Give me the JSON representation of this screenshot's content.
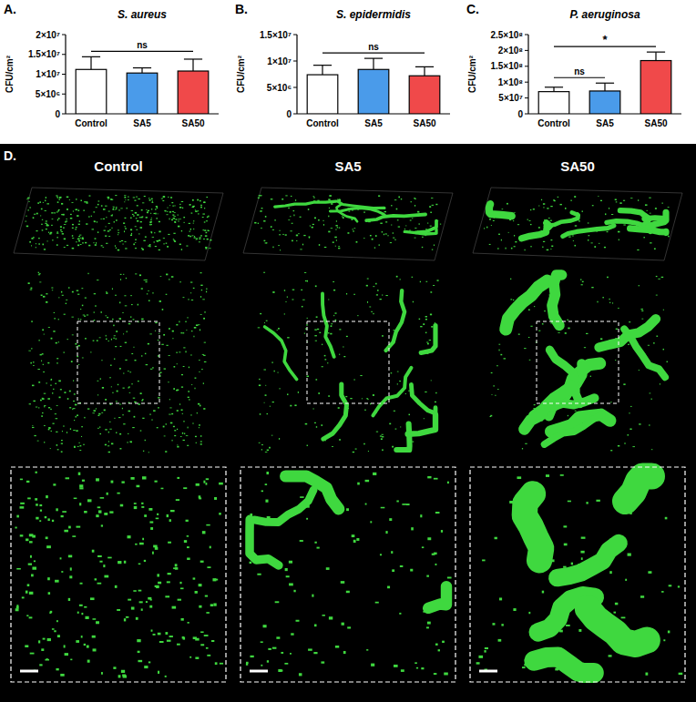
{
  "chart_data": [
    {
      "type": "bar",
      "panel": "A.",
      "title": "S. aureus",
      "y_label": "CFU/cm²",
      "categories": [
        "Control",
        "SA5",
        "SA50"
      ],
      "values": [
        11200000,
        10300000,
        10800000
      ],
      "errors": [
        3200000,
        1300000,
        3000000
      ],
      "colors": [
        "#ffffff",
        "#4a9bea",
        "#f0494a"
      ],
      "ylim": [
        0,
        20000000
      ],
      "yticks": [
        0,
        {
          "value": 5000000,
          "label": "5×10⁶"
        },
        {
          "value": 10000000,
          "label": "1×10⁷"
        },
        {
          "value": 15000000,
          "label": "1.5×10⁷"
        },
        {
          "value": 20000000,
          "label": "2×10⁷"
        }
      ],
      "annotations": [
        {
          "text": "ns",
          "from": 0,
          "to": 2
        }
      ]
    },
    {
      "type": "bar",
      "panel": "B.",
      "title": "S. epidermidis",
      "y_label": "CFU/cm²",
      "categories": [
        "Control",
        "SA5",
        "SA50"
      ],
      "values": [
        7400000,
        8400000,
        7200000
      ],
      "errors": [
        1800000,
        2100000,
        1700000
      ],
      "colors": [
        "#ffffff",
        "#4a9bea",
        "#f0494a"
      ],
      "ylim": [
        0,
        15000000
      ],
      "yticks": [
        0,
        {
          "value": 5000000,
          "label": "5×10⁶"
        },
        {
          "value": 10000000,
          "label": "1×10⁷"
        },
        {
          "value": 15000000,
          "label": "1.5×10⁷"
        }
      ],
      "annotations": [
        {
          "text": "ns",
          "from": 0,
          "to": 2
        }
      ]
    },
    {
      "type": "bar",
      "panel": "C.",
      "title": "P. aeruginosa",
      "y_label": "CFU/cm²",
      "categories": [
        "Control",
        "SA5",
        "SA50"
      ],
      "values": [
        70000000,
        72000000,
        168000000
      ],
      "errors": [
        14000000,
        25000000,
        27000000
      ],
      "colors": [
        "#ffffff",
        "#4a9bea",
        "#f0494a"
      ],
      "ylim": [
        0,
        250000000
      ],
      "yticks": [
        0,
        {
          "value": 50000000,
          "label": "5×10⁷"
        },
        {
          "value": 100000000,
          "label": "1×10⁸"
        },
        {
          "value": 150000000,
          "label": "1.5×10⁸"
        },
        {
          "value": 200000000,
          "label": "2×10⁸"
        },
        {
          "value": 250000000,
          "label": "2.5×10⁸"
        }
      ],
      "annotations": [
        {
          "text": "*",
          "from": 0,
          "to": 2
        },
        {
          "text": "ns",
          "from": 0,
          "to": 1
        }
      ]
    }
  ],
  "image_panel": {
    "label": "D.",
    "columns": [
      "Control",
      "SA5",
      "SA50"
    ]
  }
}
